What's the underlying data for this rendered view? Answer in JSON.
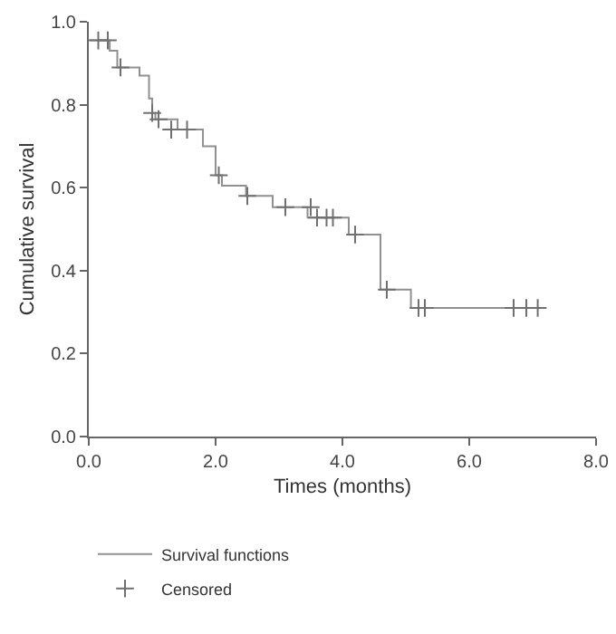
{
  "chart_data": {
    "type": "step",
    "xlabel": "Times (months)",
    "ylabel": "Cumulative survival",
    "xlim": [
      0,
      8
    ],
    "xticks": [
      {
        "value": 0,
        "label": "0.0"
      },
      {
        "value": 2,
        "label": "2.0"
      },
      {
        "value": 4,
        "label": "4.0"
      },
      {
        "value": 6,
        "label": "6.0"
      },
      {
        "value": 8,
        "label": "8.0"
      }
    ],
    "ylim": [
      0,
      1
    ],
    "yticks": [
      {
        "value": 0,
        "label": "0.0"
      },
      {
        "value": 0.2,
        "label": "0.2"
      },
      {
        "value": 0.4,
        "label": "0.4"
      },
      {
        "value": 0.6,
        "label": "0.6"
      },
      {
        "value": 0.8,
        "label": "0.8"
      },
      {
        "value": 1,
        "label": "1.0"
      }
    ],
    "grid": false,
    "legend": "bottom left",
    "line_style": "solid",
    "series": [
      {
        "name": "Survival functions",
        "color": "#909090",
        "x": [
          0,
          0.33,
          0.45,
          0.8,
          0.95,
          1.0,
          1.05,
          1.4,
          1.8,
          2.0,
          2.1,
          2.48,
          2.9,
          3.45,
          4.1,
          4.6,
          5.08,
          7.08
        ],
        "values": [
          0.955,
          0.93,
          0.89,
          0.87,
          0.815,
          0.78,
          0.765,
          0.74,
          0.7,
          0.63,
          0.605,
          0.58,
          0.553,
          0.528,
          0.487,
          0.354,
          0.31,
          0.31
        ]
      },
      {
        "name": "Censored",
        "type": "scatter",
        "color": "#707070",
        "marker": "cross",
        "x": [
          0.15,
          0.3,
          0.5,
          1.0,
          1.1,
          1.3,
          1.55,
          2.05,
          2.5,
          3.1,
          3.5,
          3.6,
          3.75,
          3.85,
          4.2,
          4.7,
          5.2,
          5.3,
          6.7,
          6.9,
          7.08
        ],
        "values": [
          0.955,
          0.955,
          0.89,
          0.78,
          0.765,
          0.74,
          0.74,
          0.63,
          0.58,
          0.553,
          0.553,
          0.528,
          0.528,
          0.528,
          0.487,
          0.354,
          0.31,
          0.31,
          0.31,
          0.31,
          0.31
        ]
      }
    ]
  }
}
